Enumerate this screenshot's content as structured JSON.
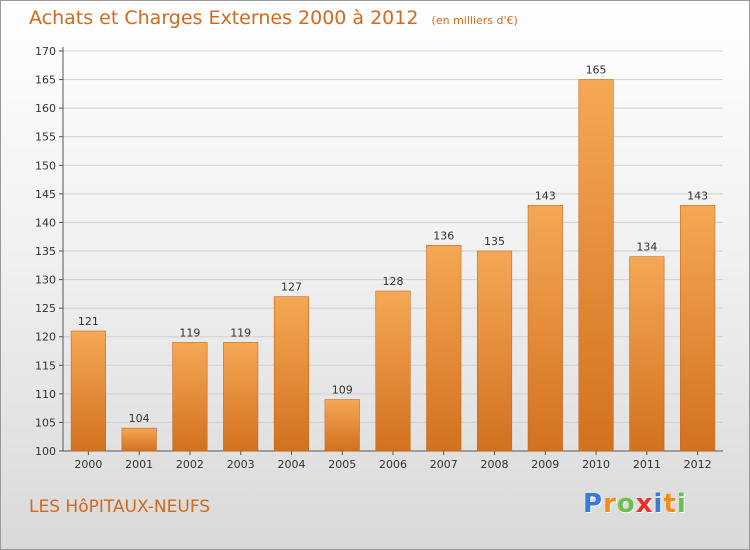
{
  "header": {
    "title": "Achats et Charges Externes 2000 à 2012",
    "unit": "(en milliers d'€)"
  },
  "footer": {
    "commune": "LES HôPITAUX-NEUFS",
    "brand": {
      "letters": [
        {
          "char": "P",
          "color": "#3a7bd5"
        },
        {
          "char": "r",
          "color": "#f28c1c"
        },
        {
          "char": "o",
          "color": "#6cc04a"
        },
        {
          "char": "x",
          "color": "#e8312e"
        },
        {
          "char": "i",
          "color": "#3a7bd5"
        },
        {
          "char": "t",
          "color": "#f28c1c"
        },
        {
          "char": "i",
          "color": "#6cc04a"
        }
      ]
    }
  },
  "chart_data": {
    "type": "bar",
    "categories": [
      "2000",
      "2001",
      "2002",
      "2003",
      "2004",
      "2005",
      "2006",
      "2007",
      "2008",
      "2009",
      "2010",
      "2011",
      "2012"
    ],
    "values": [
      121,
      104,
      119,
      119,
      127,
      109,
      128,
      136,
      135,
      143,
      165,
      134,
      143
    ],
    "data_labels": [
      "121",
      "104",
      "119",
      "119",
      "127",
      "109",
      "128",
      "136",
      "135",
      "143",
      "165",
      "134",
      "143"
    ],
    "ylim": [
      100,
      170
    ],
    "yticks": [
      100,
      105,
      110,
      115,
      120,
      125,
      130,
      135,
      140,
      145,
      150,
      155,
      160,
      165,
      170
    ],
    "grid": true,
    "colors": {
      "bar_top": "#f5a855",
      "bar_bottom": "#d2711e",
      "text": "#333333",
      "title": "#d2691e"
    }
  }
}
